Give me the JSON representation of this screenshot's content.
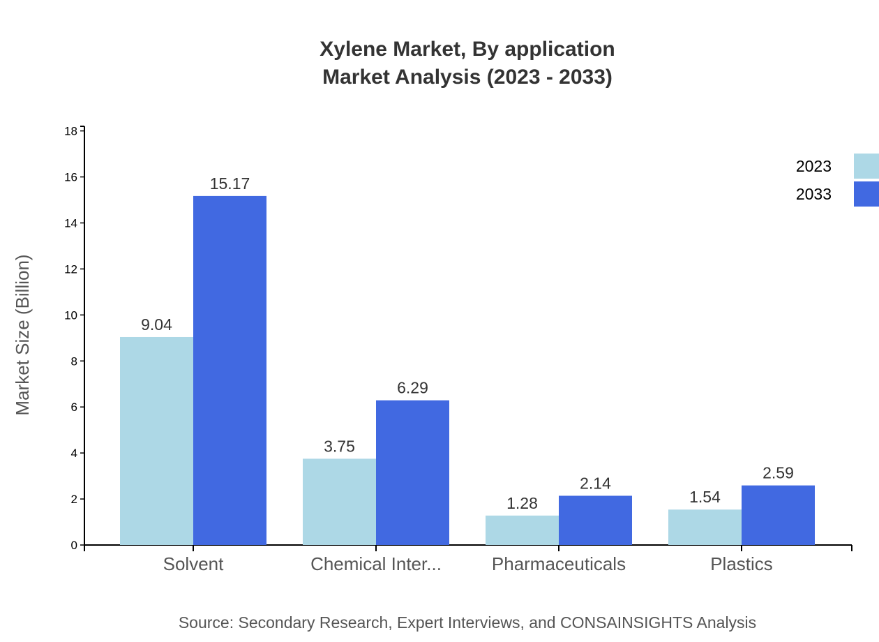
{
  "chart_data": {
    "type": "bar",
    "title": "Xylene Market, By application",
    "subtitle": "Market Analysis (2023 - 2033)",
    "xlabel": "",
    "ylabel": "Market Size (Billion)",
    "ylim": [
      0,
      18.2
    ],
    "yticks": [
      0,
      2,
      4,
      6,
      8,
      10,
      12,
      14,
      16,
      18
    ],
    "categories": [
      "Solvent",
      "Chemical Inter...",
      "Pharmaceuticals",
      "Plastics"
    ],
    "series": [
      {
        "name": "2023",
        "color": "#add8e6",
        "values": [
          9.04,
          3.75,
          1.28,
          1.54
        ]
      },
      {
        "name": "2033",
        "color": "#4169e1",
        "values": [
          15.17,
          6.29,
          2.14,
          2.59
        ]
      }
    ],
    "grid": false,
    "legend": "top-right",
    "source": "Source: Secondary Research, Expert Interviews, and CONSAINSIGHTS Analysis"
  }
}
